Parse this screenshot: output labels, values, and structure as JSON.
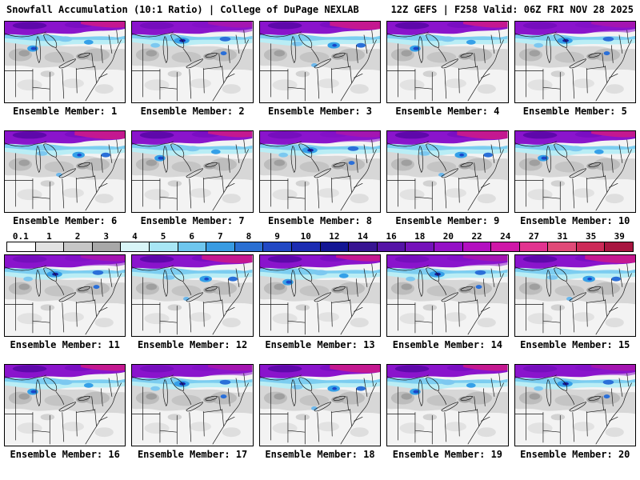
{
  "header": {
    "title_left": "Snowfall Accumulation (10:1 Ratio) | College of DuPage NEXLAB",
    "title_right": "12Z GEFS | F258 Valid: 06Z FRI NOV 28 2025"
  },
  "panels": [
    {
      "label": "Ensemble Member: 1"
    },
    {
      "label": "Ensemble Member: 2"
    },
    {
      "label": "Ensemble Member: 3"
    },
    {
      "label": "Ensemble Member: 4"
    },
    {
      "label": "Ensemble Member: 5"
    },
    {
      "label": "Ensemble Member: 6"
    },
    {
      "label": "Ensemble Member: 7"
    },
    {
      "label": "Ensemble Member: 8"
    },
    {
      "label": "Ensemble Member: 9"
    },
    {
      "label": "Ensemble Member: 10"
    },
    {
      "label": "Ensemble Member: 11"
    },
    {
      "label": "Ensemble Member: 12"
    },
    {
      "label": "Ensemble Member: 13"
    },
    {
      "label": "Ensemble Member: 14"
    },
    {
      "label": "Ensemble Member: 15"
    },
    {
      "label": "Ensemble Member: 16"
    },
    {
      "label": "Ensemble Member: 17"
    },
    {
      "label": "Ensemble Member: 18"
    },
    {
      "label": "Ensemble Member: 19"
    },
    {
      "label": "Ensemble Member: 20"
    }
  ],
  "colorbar": {
    "ticks": [
      "0.1",
      "1",
      "2",
      "3",
      "4",
      "5",
      "6",
      "7",
      "8",
      "9",
      "10",
      "12",
      "14",
      "16",
      "18",
      "20",
      "22",
      "24",
      "27",
      "31",
      "35",
      "39"
    ],
    "segments": [
      "#ffffff",
      "#e2e2e2",
      "#c6c6c6",
      "#a8a8a8",
      "#d8f5f7",
      "#a8e6f5",
      "#6ec6ee",
      "#389be2",
      "#2a6fd2",
      "#2148c4",
      "#1b2cb2",
      "#131694",
      "#371492",
      "#5513a6",
      "#7512ba",
      "#9410c6",
      "#b30fc0",
      "#cf17a8",
      "#e23390",
      "#e04a78",
      "#cc2a58",
      "#a81540"
    ]
  }
}
